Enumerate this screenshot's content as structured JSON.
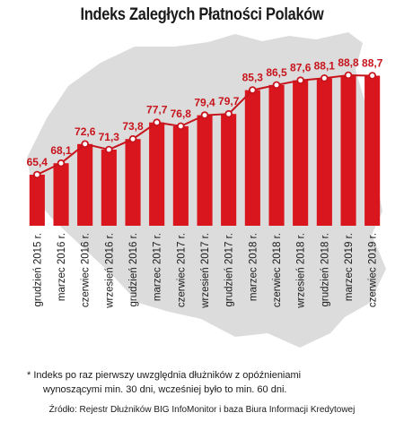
{
  "title": "Indeks Zaległych Płatności Polaków",
  "footnote_line1": "* Indeks po raz pierwszy uwzględnia dłużników z opóźnieniami",
  "footnote_line2": "wynoszącymi min. 30 dni, wcześniej było to min. 60 dni.",
  "source": "Źródło: Rejestr Dłużników BIG InfoMonitor i baza Biura Informacji Kredytowej",
  "colors": {
    "bar": "#d9161e",
    "line": "#c8141c",
    "map": "#dcdcdc",
    "text": "#1a1a1a"
  },
  "chart_data": {
    "type": "bar",
    "title": "Indeks Zaległych Płatności Polaków",
    "categories": [
      "grudzień 2015 r.",
      "marzec 2016 r.",
      "czerwiec 2016 r.",
      "wrzesień 2016 r.",
      "grudzień 2016 r.",
      "marzec 2017 r.",
      "czerwiec 2017 r.",
      "wrzesień 2017 r.",
      "grudzień 2017 r.",
      "marzec 2018 r.",
      "czerwiec 2018 r.",
      "wrzesień 2018 r.",
      "grudzień 2018 r.",
      "marzec 2019 r.",
      "czerwiec 2019 r."
    ],
    "values": [
      65.4,
      68.1,
      72.6,
      71.3,
      73.8,
      77.7,
      76.8,
      79.4,
      79.7,
      85.3,
      86.5,
      87.6,
      88.1,
      88.8,
      88.7
    ],
    "value_labels": [
      "65,4",
      "68,1",
      "72,6",
      "71,3",
      "73,8",
      "77,7",
      "76,8",
      "79,4",
      "79,7",
      "85,3",
      "86,5",
      "87,6",
      "88,1",
      "88,8",
      "88,7"
    ],
    "overlay": "line with point markers on bar tops",
    "xlabel": "",
    "ylabel": "",
    "grid": false,
    "legend": "none"
  }
}
